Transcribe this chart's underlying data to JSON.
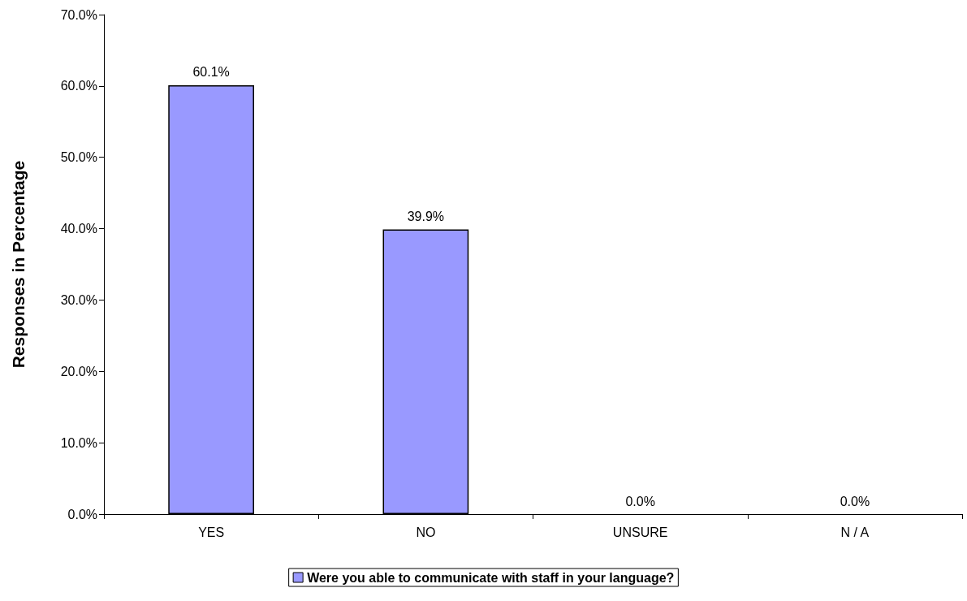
{
  "chart_data": {
    "type": "bar",
    "ylabel": "Responses in Percentage",
    "categories": [
      "YES",
      "NO",
      "UNSURE",
      "N / A"
    ],
    "series": [
      {
        "name": "Were you able to communicate with staff in your language?",
        "color": "#9999ff",
        "values": [
          60.1,
          39.9,
          0,
          0
        ],
        "value_labels": [
          "60.1%",
          "39.9%",
          "0.0%",
          "0.0%"
        ]
      }
    ],
    "ylim": [
      0,
      70
    ],
    "yticks": [
      {
        "value": 0,
        "label": "0.0%"
      },
      {
        "value": 10,
        "label": "10.0%"
      },
      {
        "value": 20,
        "label": "20.0%"
      },
      {
        "value": 30,
        "label": "30.0%"
      },
      {
        "value": 40,
        "label": "40.0%"
      },
      {
        "value": 50,
        "label": "50.0%"
      },
      {
        "value": 60,
        "label": "60.0%"
      },
      {
        "value": 70,
        "label": "70.0%"
      }
    ],
    "grid": false,
    "legend": "bottom"
  }
}
